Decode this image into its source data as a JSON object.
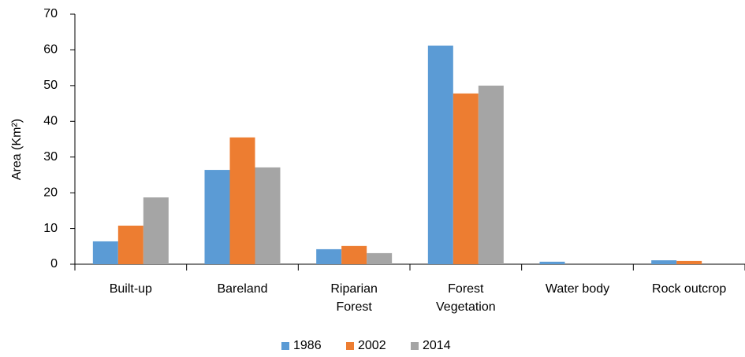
{
  "chart_data": {
    "type": "bar",
    "y_label": "Area (Km²)",
    "categories": [
      "Built-up",
      "Bareland",
      "Riparian\nForest",
      "Forest\nVegetation",
      "Water body",
      "Rock outcrop"
    ],
    "series": [
      {
        "name": "1986",
        "color": "#5b9bd5",
        "values": [
          6.4,
          26.4,
          4.2,
          61.2,
          0.7,
          1.1
        ]
      },
      {
        "name": "2002",
        "color": "#ed7d31",
        "values": [
          10.8,
          35.5,
          5.1,
          47.8,
          0,
          0.9
        ]
      },
      {
        "name": "2014",
        "color": "#a5a5a5",
        "values": [
          18.7,
          27.1,
          3.1,
          50,
          0,
          0
        ]
      }
    ],
    "ylim": [
      0,
      70
    ],
    "yticks": [
      0,
      10,
      20,
      30,
      40,
      50,
      60,
      70
    ],
    "legend": "bottom"
  }
}
